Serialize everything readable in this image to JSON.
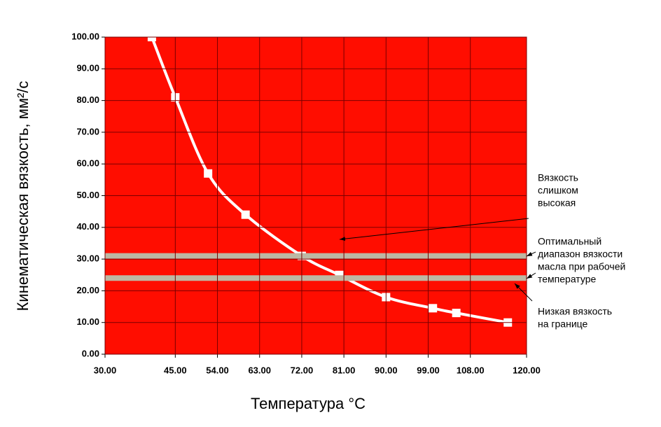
{
  "chart_data": {
    "type": "line",
    "xlabel": "Температура °С",
    "ylabel": "Кинематическая вязкость, мм²/с",
    "series": [
      {
        "color": "#ffffff",
        "x": [
          40,
          45,
          52,
          60,
          72,
          80,
          90,
          100,
          105,
          116
        ],
        "values": [
          100,
          81,
          57,
          44,
          31,
          25,
          18,
          14.5,
          13,
          10
        ]
      }
    ],
    "xlim": [
      30,
      120
    ],
    "xticks": [
      {
        "value": 30,
        "label": "30.00"
      },
      {
        "value": 45,
        "label": "45.00"
      },
      {
        "value": 54,
        "label": "54.00"
      },
      {
        "value": 63,
        "label": "63.00"
      },
      {
        "value": 72,
        "label": "72.00"
      },
      {
        "value": 81,
        "label": "81.00"
      },
      {
        "value": 90,
        "label": "90.00"
      },
      {
        "value": 99,
        "label": "99.00"
      },
      {
        "value": 108,
        "label": "108.00"
      },
      {
        "value": 120,
        "label": "120.00"
      }
    ],
    "ylim": [
      0,
      100
    ],
    "yticks": [
      {
        "value": 0,
        "label": "0.00"
      },
      {
        "value": 10,
        "label": "10.00"
      },
      {
        "value": 20,
        "label": "20.00"
      },
      {
        "value": 30,
        "label": "30.00"
      },
      {
        "value": 40,
        "label": "40.00"
      },
      {
        "value": 50,
        "label": "50.00"
      },
      {
        "value": 60,
        "label": "60.00"
      },
      {
        "value": 70,
        "label": "70.00"
      },
      {
        "value": 80,
        "label": "80.00"
      },
      {
        "value": 90,
        "label": "90.00"
      },
      {
        "value": 100,
        "label": "100.00"
      }
    ],
    "grid": true,
    "background": "#ff0d00",
    "bands": [
      31,
      24
    ],
    "band_color": "#bdb8a4",
    "annotations": [
      {
        "lines": [
          "Вязкость",
          "слишком",
          "высокая"
        ]
      },
      {
        "lines": [
          "Оптимальный",
          "диапазон вязкости",
          "масла при рабочей",
          "температуре"
        ]
      },
      {
        "lines": [
          "Низкая вязкость",
          "на границе"
        ]
      }
    ]
  }
}
